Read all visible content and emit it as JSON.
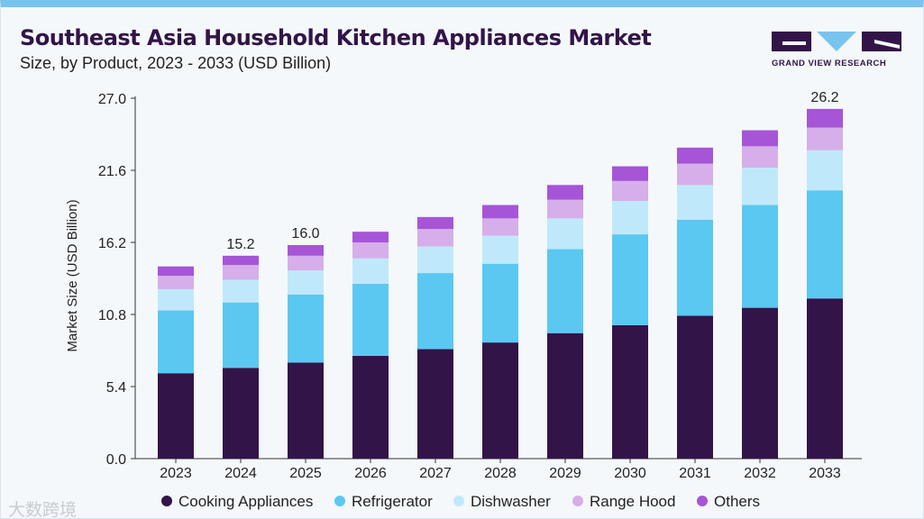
{
  "header": {
    "title": "Southeast Asia Household Kitchen Appliances Market",
    "subtitle": "Size, by Product, 2023 - 2033 (USD Billion)"
  },
  "brand": {
    "name": "GRAND VIEW RESEARCH",
    "color": "#321449",
    "accent": "#79c3ef"
  },
  "watermark": {
    "text": "大数跨境"
  },
  "chart_data": {
    "type": "bar",
    "stacked": true,
    "ylabel": "Market Size (USD Billion)",
    "xlabel": "",
    "ylim": [
      0,
      27.0
    ],
    "yticks": [
      "0.0",
      "5.4",
      "10.8",
      "16.2",
      "21.6",
      "27.0"
    ],
    "categories": [
      "2023",
      "2024",
      "2025",
      "2026",
      "2027",
      "2028",
      "2029",
      "2030",
      "2031",
      "2032",
      "2033"
    ],
    "series": [
      {
        "name": "Cooking Appliances",
        "color": "#321449",
        "values": [
          6.4,
          6.8,
          7.2,
          7.7,
          8.2,
          8.7,
          9.4,
          10.0,
          10.7,
          11.3,
          12.0
        ]
      },
      {
        "name": "Refrigerator",
        "color": "#5bc8f2",
        "values": [
          4.7,
          4.9,
          5.1,
          5.4,
          5.7,
          5.9,
          6.3,
          6.8,
          7.2,
          7.7,
          8.1
        ]
      },
      {
        "name": "Dishwasher",
        "color": "#bfe9fa",
        "values": [
          1.6,
          1.7,
          1.8,
          1.9,
          2.0,
          2.1,
          2.3,
          2.5,
          2.6,
          2.8,
          3.0
        ]
      },
      {
        "name": "Range Hood",
        "color": "#d5aeea",
        "values": [
          1.0,
          1.1,
          1.1,
          1.2,
          1.3,
          1.3,
          1.4,
          1.5,
          1.6,
          1.6,
          1.7
        ]
      },
      {
        "name": "Others",
        "color": "#a655d6",
        "values": [
          0.7,
          0.7,
          0.8,
          0.8,
          0.9,
          1.0,
          1.1,
          1.1,
          1.2,
          1.2,
          1.4
        ]
      }
    ],
    "annotations": [
      {
        "category": "2024",
        "label": "15.2"
      },
      {
        "category": "2025",
        "label": "16.0"
      },
      {
        "category": "2033",
        "label": "26.2"
      }
    ],
    "legend_position": "bottom",
    "grid": false
  }
}
